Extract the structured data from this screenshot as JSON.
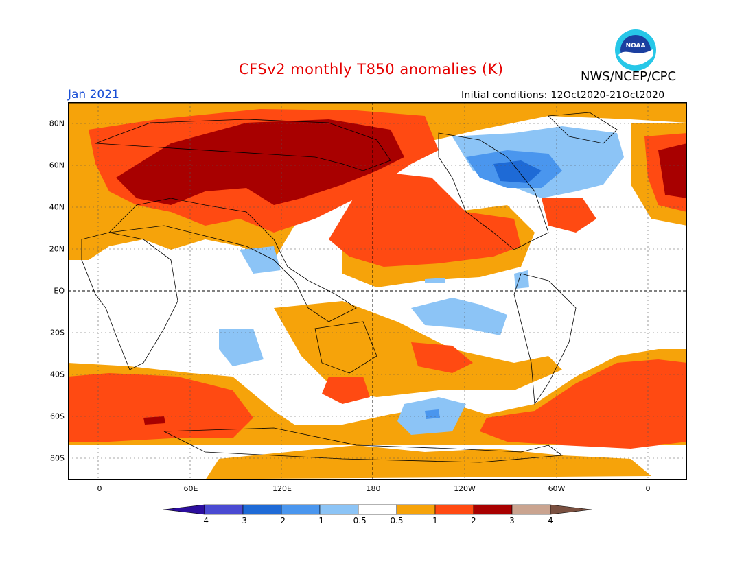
{
  "header": {
    "title": "CFSv2 monthly T850 anomalies (K)",
    "agency": "NWS/NCEP/CPC",
    "logo_text": "NOAA",
    "month": "Jan 2021",
    "initial_conditions": "Initial conditions: 12Oct2020-21Oct2020"
  },
  "axes": {
    "x_ticks": [
      "0",
      "60E",
      "120E",
      "180",
      "120W",
      "60W",
      "0"
    ],
    "y_ticks": [
      "80N",
      "60N",
      "40N",
      "20N",
      "EQ",
      "20S",
      "40S",
      "60S",
      "80S"
    ]
  },
  "colorbar": {
    "levels": [
      "-4",
      "-3",
      "-2",
      "-1",
      "-0.5",
      "0.5",
      "1",
      "2",
      "3",
      "4"
    ],
    "colors": [
      "#2c0e9e",
      "#4a4ad2",
      "#1e6ad6",
      "#4a96ee",
      "#8cc4f6",
      "#ffffff",
      "#f6a30a",
      "#ff4a12",
      "#a80000",
      "#caa490",
      "#7a5040"
    ]
  },
  "colors": {
    "title": "#e60000",
    "month": "#1a4fd6",
    "coastline": "#000000"
  }
}
